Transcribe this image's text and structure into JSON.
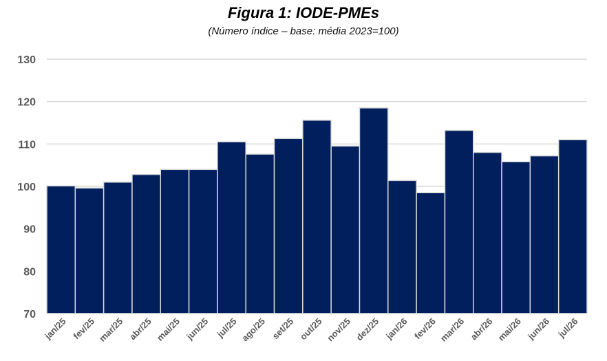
{
  "chart_data": {
    "type": "bar",
    "title": "Figura 1: IODE-PMEs",
    "subtitle": "(Número índice – base: média 2023=100)",
    "xlabel": "",
    "ylabel": "",
    "ylim": [
      70,
      130
    ],
    "yticks": [
      70,
      80,
      90,
      100,
      110,
      120,
      130
    ],
    "grid": true,
    "bar_color": "#001f5c",
    "categories": [
      "jan/25",
      "fev/25",
      "mar/25",
      "abr/25",
      "mai/25",
      "jun/25",
      "jul/25",
      "ago/25",
      "set/25",
      "out/25",
      "nov/25",
      "dez/25",
      "jan/26",
      "fev/26",
      "mar/26",
      "abr/26",
      "mai/26",
      "jun/26",
      "jul/26"
    ],
    "values": [
      100.1,
      99.6,
      101.0,
      102.8,
      104.0,
      104.0,
      110.5,
      107.6,
      111.3,
      115.6,
      109.5,
      118.5,
      101.4,
      98.5,
      113.2,
      108.0,
      105.8,
      107.2,
      111.0
    ]
  }
}
